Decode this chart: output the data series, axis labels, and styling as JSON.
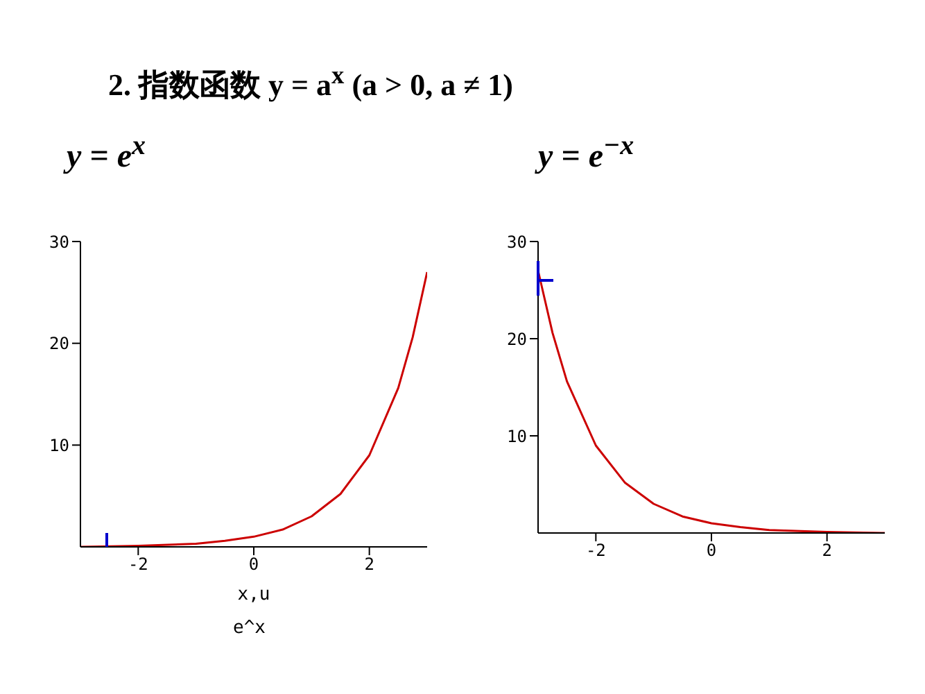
{
  "chart_data": [
    {
      "type": "line",
      "title": "2. 指数函数    y = a$^{x}$ (a > 0, a ≠ 1)",
      "subtitle": "y = e$^{x}$",
      "xlabel": "x,u",
      "annotations": [
        "e^x"
      ],
      "xlim": [
        -3,
        3
      ],
      "xticks": [
        -2,
        0,
        2
      ],
      "ylim": [
        0,
        30
      ],
      "yticks": [
        10,
        20,
        30
      ],
      "grid": false,
      "legend": false,
      "series": [
        {
          "color": "#cc0000",
          "x": [
            -3,
            -2,
            -1,
            -0.5,
            0,
            0.5,
            1,
            1.5,
            2,
            2.5,
            2.75,
            3
          ],
          "values": [
            0,
            0.1,
            0.3,
            0.6,
            1,
            1.7,
            3,
            5.2,
            9,
            15.6,
            20.6,
            27
          ]
        }
      ]
    },
    {
      "type": "line",
      "subtitle": "y = e$^{−x}$",
      "xlim": [
        -3,
        3
      ],
      "xticks": [
        -2,
        0,
        2
      ],
      "ylim": [
        0,
        30
      ],
      "yticks": [
        10,
        20,
        30
      ],
      "grid": false,
      "legend": false,
      "series": [
        {
          "color": "#cc0000",
          "x": [
            -3,
            -2.75,
            -2.5,
            -2,
            -1.5,
            -1,
            -0.5,
            0,
            0.5,
            1,
            2,
            3
          ],
          "values": [
            27,
            20.6,
            15.6,
            9,
            5.2,
            3,
            1.7,
            1,
            0.6,
            0.3,
            0.1,
            0
          ]
        }
      ]
    }
  ]
}
